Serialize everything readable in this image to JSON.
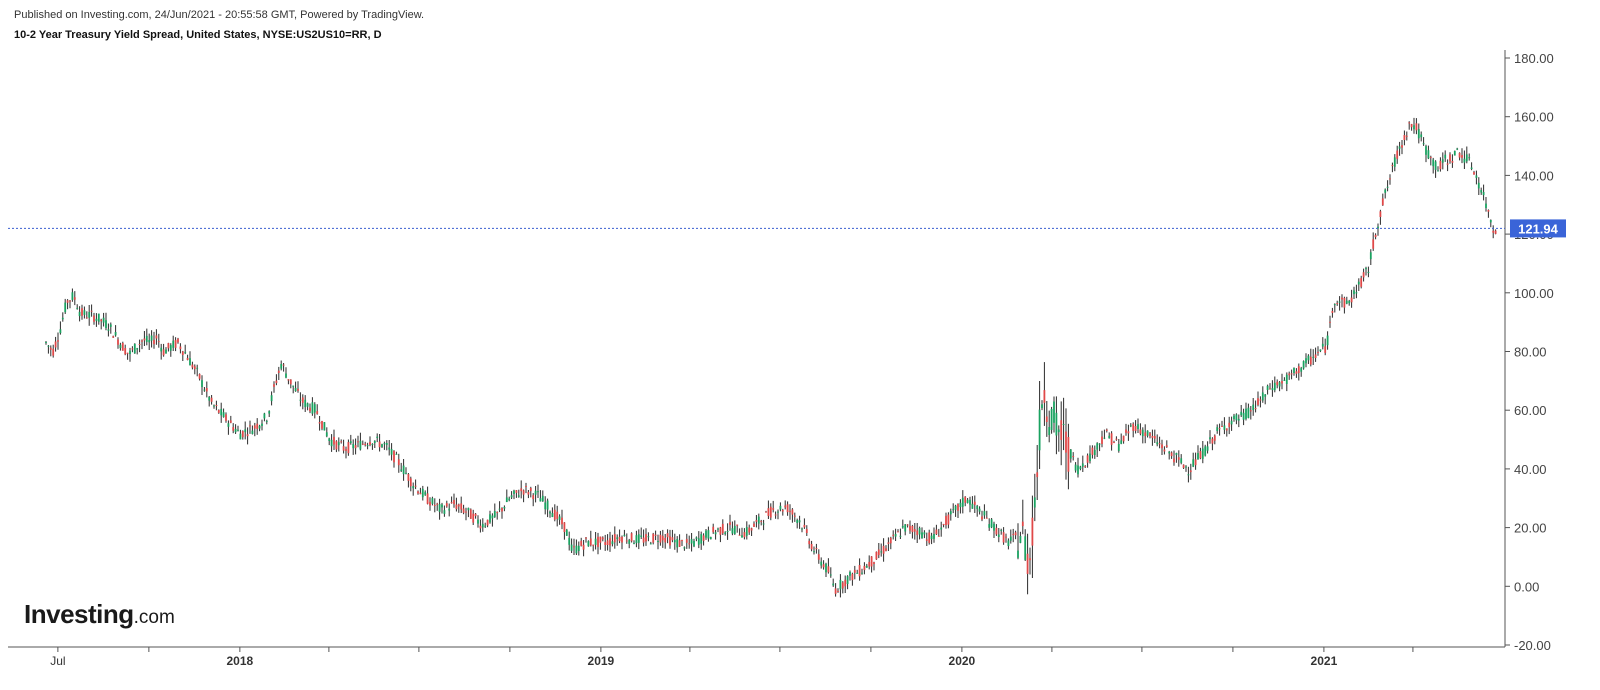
{
  "header": {
    "published": "Published on Investing.com, 24/Jun/2021 - 20:55:58 GMT, Powered by TradingView.",
    "instrument": "10-2 Year Treasury Yield Spread, United States, NYSE:US2US10=RR, D"
  },
  "logo": {
    "main": "Investing",
    "domain": ".com"
  },
  "colors": {
    "up": "#1aa260",
    "down": "#e04848",
    "wick": "#2b2b2b",
    "price_line": "#3a5fd0",
    "badge": "#3a64d8"
  },
  "chart_data": {
    "type": "line",
    "title": "10-2 Year Treasury Yield Spread, United States, NYSE:US2US10=RR, D",
    "xlabel": "",
    "ylabel": "",
    "ylim": [
      -20,
      180
    ],
    "y_ticks": [
      "180.00",
      "160.00",
      "140.00",
      "120.00",
      "100.00",
      "80.00",
      "60.00",
      "40.00",
      "20.00",
      "0.00",
      "-20.00"
    ],
    "x_ticks": [
      {
        "label": "Jul",
        "date": "2017-07-01",
        "bold": false
      },
      {
        "label": "2018",
        "date": "2018-01-01",
        "bold": true
      },
      {
        "label": "2019",
        "date": "2019-01-01",
        "bold": true
      },
      {
        "label": "2020",
        "date": "2020-01-01",
        "bold": true
      },
      {
        "label": "2021",
        "date": "2021-01-01",
        "bold": true
      }
    ],
    "minor_tick_dates": [
      "2017-10-01",
      "2018-04-01",
      "2018-07-01",
      "2018-10-01",
      "2019-04-01",
      "2019-07-01",
      "2019-10-01",
      "2020-04-01",
      "2020-07-01",
      "2020-10-01",
      "2021-04-01"
    ],
    "grid": false,
    "last_value": "121.94",
    "series": [
      {
        "values_note_free": true,
        "points": [
          [
            "2017-06-19",
            83
          ],
          [
            "2017-06-26",
            80
          ],
          [
            "2017-07-03",
            87
          ],
          [
            "2017-07-10",
            97
          ],
          [
            "2017-07-17",
            99
          ],
          [
            "2017-07-24",
            93
          ],
          [
            "2017-08-07",
            92
          ],
          [
            "2017-08-21",
            89
          ],
          [
            "2017-09-04",
            82
          ],
          [
            "2017-09-11",
            79
          ],
          [
            "2017-09-25",
            84
          ],
          [
            "2017-10-02",
            83
          ],
          [
            "2017-10-09",
            85
          ],
          [
            "2017-10-16",
            80
          ],
          [
            "2017-10-30",
            83
          ],
          [
            "2017-11-06",
            80
          ],
          [
            "2017-11-20",
            72
          ],
          [
            "2017-12-04",
            62
          ],
          [
            "2017-12-18",
            57
          ],
          [
            "2018-01-01",
            52
          ],
          [
            "2018-01-15",
            54
          ],
          [
            "2018-01-29",
            58
          ],
          [
            "2018-02-05",
            68
          ],
          [
            "2018-02-12",
            76
          ],
          [
            "2018-02-19",
            71
          ],
          [
            "2018-03-05",
            63
          ],
          [
            "2018-03-19",
            60
          ],
          [
            "2018-04-02",
            50
          ],
          [
            "2018-04-16",
            47
          ],
          [
            "2018-04-30",
            48
          ],
          [
            "2018-05-14",
            50
          ],
          [
            "2018-05-28",
            48
          ],
          [
            "2018-06-11",
            42
          ],
          [
            "2018-06-25",
            35
          ],
          [
            "2018-07-09",
            30
          ],
          [
            "2018-07-23",
            26
          ],
          [
            "2018-08-06",
            28
          ],
          [
            "2018-08-20",
            25
          ],
          [
            "2018-09-03",
            21
          ],
          [
            "2018-09-17",
            24
          ],
          [
            "2018-10-01",
            30
          ],
          [
            "2018-10-15",
            33
          ],
          [
            "2018-10-29",
            31
          ],
          [
            "2018-11-12",
            26
          ],
          [
            "2018-11-26",
            20
          ],
          [
            "2018-12-03",
            12
          ],
          [
            "2018-12-17",
            15
          ],
          [
            "2019-01-07",
            15
          ],
          [
            "2019-01-21",
            17
          ],
          [
            "2019-02-04",
            16
          ],
          [
            "2019-02-18",
            16
          ],
          [
            "2019-03-04",
            17
          ],
          [
            "2019-03-18",
            15
          ],
          [
            "2019-04-01",
            14
          ],
          [
            "2019-04-15",
            17
          ],
          [
            "2019-04-29",
            19
          ],
          [
            "2019-05-13",
            20
          ],
          [
            "2019-05-27",
            18
          ],
          [
            "2019-06-10",
            22
          ],
          [
            "2019-06-24",
            26
          ],
          [
            "2019-07-08",
            27
          ],
          [
            "2019-07-22",
            22
          ],
          [
            "2019-08-05",
            12
          ],
          [
            "2019-08-19",
            5
          ],
          [
            "2019-08-26",
            -1
          ],
          [
            "2019-09-09",
            3
          ],
          [
            "2019-09-23",
            6
          ],
          [
            "2019-10-07",
            10
          ],
          [
            "2019-10-21",
            15
          ],
          [
            "2019-11-04",
            20
          ],
          [
            "2019-11-18",
            19
          ],
          [
            "2019-12-02",
            16
          ],
          [
            "2019-12-16",
            22
          ],
          [
            "2020-01-06",
            30
          ],
          [
            "2020-01-20",
            25
          ],
          [
            "2020-02-03",
            20
          ],
          [
            "2020-02-17",
            15
          ],
          [
            "2020-03-02",
            18
          ],
          [
            "2020-03-09",
            8
          ],
          [
            "2020-03-16",
            35
          ],
          [
            "2020-03-23",
            70
          ],
          [
            "2020-03-30",
            58
          ],
          [
            "2020-04-13",
            50
          ],
          [
            "2020-04-27",
            40
          ],
          [
            "2020-05-11",
            45
          ],
          [
            "2020-05-25",
            52
          ],
          [
            "2020-06-08",
            48
          ],
          [
            "2020-06-22",
            55
          ],
          [
            "2020-07-06",
            52
          ],
          [
            "2020-07-20",
            48
          ],
          [
            "2020-08-03",
            44
          ],
          [
            "2020-08-17",
            40
          ],
          [
            "2020-08-31",
            45
          ],
          [
            "2020-09-14",
            52
          ],
          [
            "2020-09-28",
            56
          ],
          [
            "2020-10-12",
            58
          ],
          [
            "2020-10-26",
            62
          ],
          [
            "2020-11-09",
            68
          ],
          [
            "2020-11-23",
            70
          ],
          [
            "2020-12-07",
            74
          ],
          [
            "2020-12-21",
            78
          ],
          [
            "2021-01-04",
            82
          ],
          [
            "2021-01-11",
            98
          ],
          [
            "2021-01-25",
            96
          ],
          [
            "2021-02-08",
            104
          ],
          [
            "2021-02-15",
            108
          ],
          [
            "2021-02-22",
            120
          ],
          [
            "2021-03-01",
            130
          ],
          [
            "2021-03-08",
            138
          ],
          [
            "2021-03-15",
            146
          ],
          [
            "2021-03-22",
            152
          ],
          [
            "2021-03-29",
            158
          ],
          [
            "2021-04-05",
            156
          ],
          [
            "2021-04-12",
            150
          ],
          [
            "2021-04-19",
            146
          ],
          [
            "2021-04-26",
            142
          ],
          [
            "2021-05-03",
            145
          ],
          [
            "2021-05-10",
            146
          ],
          [
            "2021-05-17",
            148
          ],
          [
            "2021-05-24",
            146
          ],
          [
            "2021-05-31",
            143
          ],
          [
            "2021-06-07",
            137
          ],
          [
            "2021-06-14",
            130
          ],
          [
            "2021-06-21",
            122
          ],
          [
            "2021-06-24",
            121.94
          ]
        ]
      }
    ]
  }
}
